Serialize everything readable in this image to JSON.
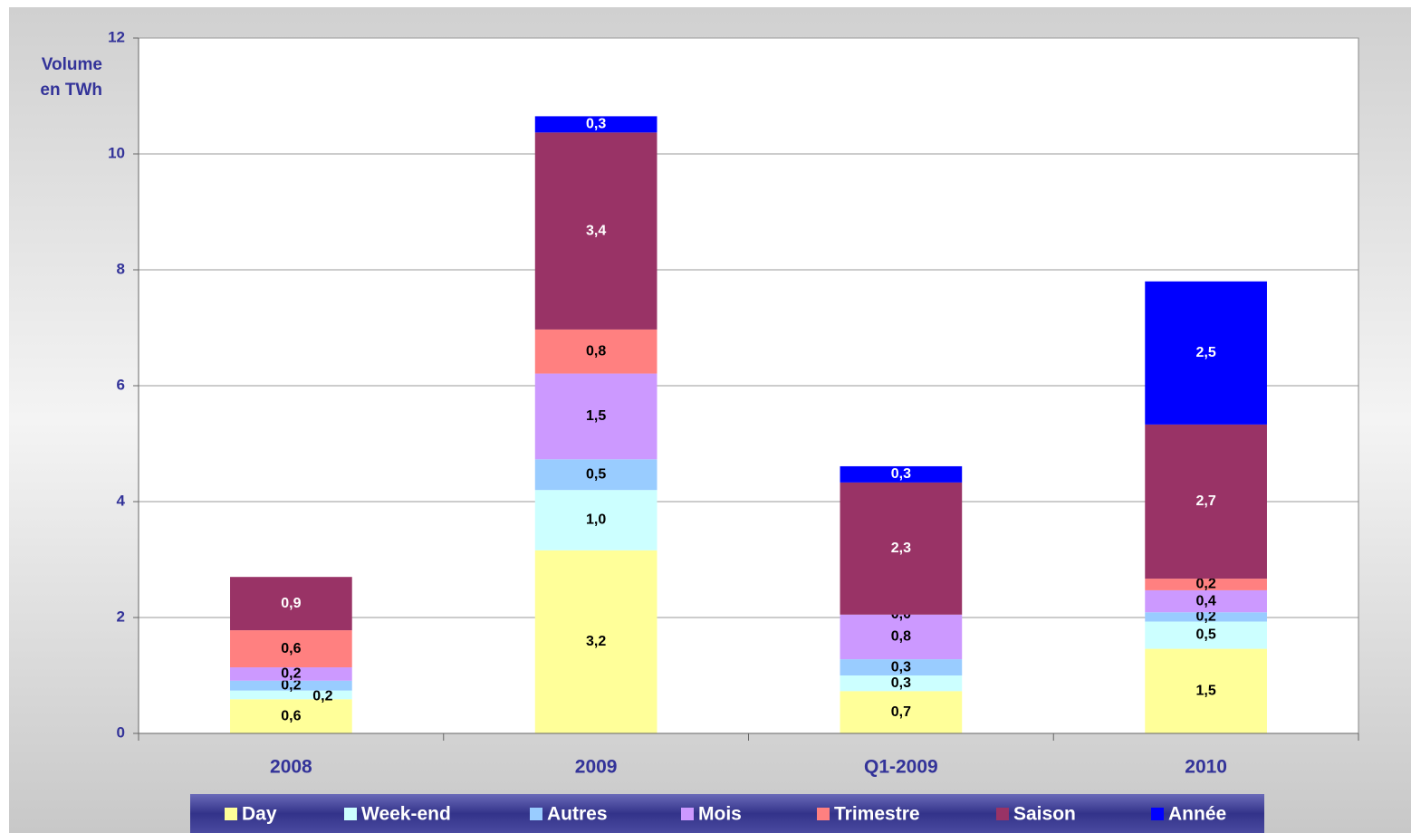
{
  "chart_data": {
    "type": "stacked_bar",
    "y_label": [
      "Volume",
      "en TWh"
    ],
    "categories": [
      "2008",
      "2009",
      "Q1-2009",
      "2010"
    ],
    "series": [
      {
        "name": "Day",
        "color": "#ffff99",
        "values": [
          0.59,
          3.16,
          0.73,
          1.46
        ],
        "value_labels": [
          "0,6",
          "3,2",
          "0,7",
          "1,5"
        ]
      },
      {
        "name": "Week-end",
        "color": "#ccffff",
        "values": [
          0.15,
          1.04,
          0.27,
          0.47
        ],
        "value_labels": [
          "0,2",
          "1,0",
          "0,3",
          "0,5"
        ]
      },
      {
        "name": "Autres",
        "color": "#99ccff",
        "values": [
          0.17,
          0.53,
          0.28,
          0.16
        ],
        "value_labels": [
          "0,2",
          "0,5",
          "0,3",
          "0,2"
        ]
      },
      {
        "name": "Mois",
        "color": "#cc99ff",
        "values": [
          0.23,
          1.48,
          0.77,
          0.38
        ],
        "value_labels": [
          "0,2",
          "1,5",
          "0,8",
          "0,4"
        ]
      },
      {
        "name": "Trimestre",
        "color": "#ff8080",
        "values": [
          0.64,
          0.76,
          0.0,
          0.2
        ],
        "value_labels": [
          "0,6",
          "0,8",
          "0,0",
          "0,2"
        ]
      },
      {
        "name": "Saison",
        "color": "#993366",
        "values": [
          0.92,
          3.4,
          2.28,
          2.66
        ],
        "value_labels": [
          "0,9",
          "3,4",
          "2,3",
          "2,7"
        ]
      },
      {
        "name": "Année",
        "color": "#0000ff",
        "values": [
          null,
          0.28,
          0.28,
          2.47
        ],
        "value_labels": [
          null,
          "0,3",
          "0,3",
          "2,5"
        ]
      }
    ],
    "ylim": [
      0,
      12
    ],
    "yticks": [
      0,
      2,
      4,
      6,
      8,
      10,
      12
    ],
    "grid": true,
    "legend": "bottom"
  }
}
